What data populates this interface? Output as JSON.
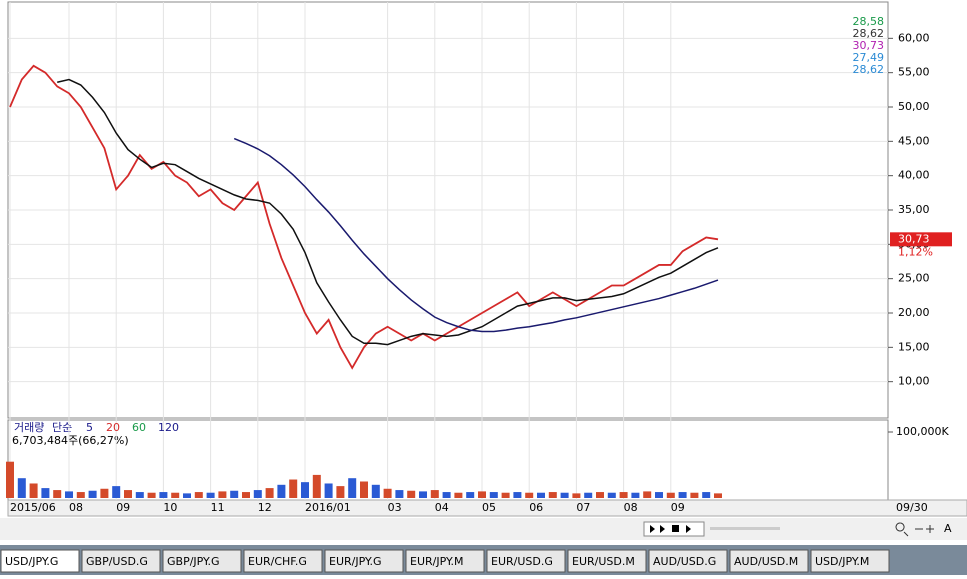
{
  "chart_data": {
    "type": "line",
    "categories": [
      "2015/06",
      null,
      null,
      null,
      null,
      "08",
      null,
      null,
      null,
      "09",
      null,
      null,
      null,
      "10",
      null,
      null,
      null,
      "11",
      null,
      null,
      null,
      "12",
      null,
      null,
      null,
      "2016/01",
      null,
      null,
      null,
      null,
      null,
      null,
      "03",
      null,
      null,
      null,
      "04",
      null,
      null,
      null,
      "05",
      null,
      null,
      null,
      "06",
      null,
      null,
      null,
      "07",
      null,
      null,
      null,
      "08",
      null,
      null,
      null,
      "09",
      null,
      null,
      null,
      null
    ],
    "series": [
      {
        "color": "#d42a2a",
        "values": [
          50,
          54,
          56,
          55,
          53,
          52,
          50,
          47,
          44,
          38,
          40,
          43,
          41,
          42,
          40,
          39,
          37,
          38,
          36,
          35,
          37,
          39,
          33,
          28,
          24,
          20,
          17,
          19,
          15,
          12,
          15,
          17,
          18,
          17,
          16,
          17,
          16,
          17,
          18,
          19,
          20,
          21,
          22,
          23,
          21,
          22,
          23,
          22,
          21,
          22,
          23,
          24,
          24,
          25,
          26,
          27,
          27,
          29,
          30,
          31,
          30.73
        ]
      },
      {
        "color": "#101010",
        "values": [
          null,
          null,
          null,
          null,
          53.6,
          54,
          53.2,
          51.4,
          49.2,
          46.2,
          43.8,
          42.4,
          41.2,
          41.8,
          41.6,
          40.6,
          39.6,
          38.8,
          38,
          37.2,
          36.6,
          36.4,
          36,
          34.4,
          32.2,
          28.8,
          24.4,
          21.6,
          19,
          16.6,
          15.6,
          15.6,
          15.4,
          16,
          16.6,
          17,
          16.8,
          16.6,
          16.8,
          17.4,
          18,
          19,
          20,
          21,
          21.4,
          21.8,
          22.2,
          22.2,
          21.8,
          22,
          22.2,
          22.4,
          22.8,
          23.6,
          24.4,
          25.2,
          25.8,
          26.8,
          27.8,
          28.8,
          29.5
        ]
      },
      {
        "color": "#1a1a6e",
        "values": [
          null,
          null,
          null,
          null,
          null,
          null,
          null,
          null,
          null,
          null,
          null,
          null,
          null,
          null,
          null,
          null,
          null,
          null,
          null,
          45.4,
          44.7,
          43.9,
          42.9,
          41.6,
          40.1,
          38.4,
          36.5,
          34.7,
          32.7,
          30.6,
          28.6,
          26.8,
          25,
          23.4,
          21.9,
          20.6,
          19.4,
          18.6,
          18,
          17.5,
          17.3,
          17.3,
          17.5,
          17.8,
          18,
          18.3,
          18.6,
          19,
          19.3,
          19.7,
          20.1,
          20.5,
          20.9,
          21.3,
          21.7,
          22.1,
          22.6,
          23.1,
          23.6,
          24.2,
          24.8
        ]
      }
    ],
    "ylim": [
      5,
      65
    ],
    "yticks": [
      {
        "value": 10,
        "label": "10,00"
      },
      {
        "value": 15,
        "label": "15,00"
      },
      {
        "value": 20,
        "label": "20,00"
      },
      {
        "value": 25,
        "label": "25,00"
      },
      {
        "value": 30,
        "label": "30,00"
      },
      {
        "value": 35,
        "label": "35,00"
      },
      {
        "value": 40,
        "label": "40,00"
      },
      {
        "value": 45,
        "label": "45,00"
      },
      {
        "value": 50,
        "label": "50,00"
      },
      {
        "value": 55,
        "label": "55,00"
      },
      {
        "value": 60,
        "label": "60,00"
      }
    ],
    "grid": true,
    "overlay_legend": [
      {
        "label": "28,58",
        "color": "#1a9a4a"
      },
      {
        "label": "28,62",
        "color": "#333333"
      },
      {
        "label": "30,73",
        "color": "#b020b0"
      },
      {
        "label": "27,49",
        "color": "#2a8ad4"
      },
      {
        "label": "28,62",
        "color": "#2a8ad4"
      }
    ],
    "last_price_label": "30,73",
    "change_label": "1,12%",
    "volume": {
      "title": "거래량",
      "ma_title": "단순",
      "ma_periods": [
        {
          "label": "5",
          "color": "#1a1a8a"
        },
        {
          "label": "20",
          "color": "#d42a2a"
        },
        {
          "label": "60",
          "color": "#1a9a4a"
        },
        {
          "label": "120",
          "color": "#1a1a8a"
        }
      ],
      "info": "6,703,484주(66,27%)",
      "ylim": [
        0,
        100000
      ],
      "yticks": [
        {
          "value": 100000,
          "label": "100,000K"
        }
      ],
      "values": [
        55000,
        30000,
        22000,
        15000,
        12000,
        10000,
        9000,
        11000,
        14000,
        18000,
        12000,
        9000,
        8000,
        9000,
        8000,
        7000,
        9000,
        8000,
        10000,
        11000,
        9000,
        12000,
        15000,
        20000,
        28000,
        24000,
        35000,
        22000,
        18000,
        30000,
        25000,
        20000,
        14000,
        12000,
        11000,
        10000,
        12000,
        9000,
        8000,
        9000,
        10000,
        9000,
        8000,
        9000,
        8000,
        8000,
        9000,
        8000,
        7000,
        8000,
        9000,
        8000,
        9000,
        8000,
        10000,
        9000,
        8000,
        9000,
        8000,
        9000,
        7000
      ]
    },
    "date_label": "09/30"
  },
  "tabs": [
    "USD/JPY.G",
    "GBP/USD.G",
    "GBP/JPY.G",
    "EUR/CHF.G",
    "EUR/JPY.G",
    "EUR/JPY.M",
    "EUR/USD.G",
    "EUR/USD.M",
    "AUD/USD.G",
    "AUD/USD.M",
    "USD/JPY.M"
  ]
}
